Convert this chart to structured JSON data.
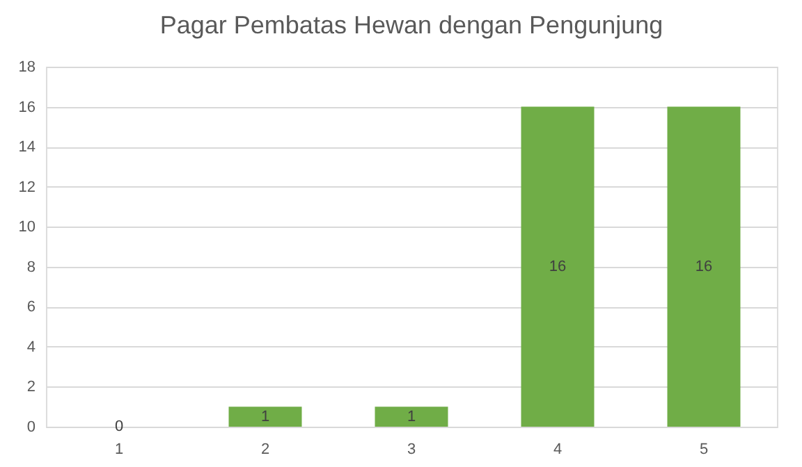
{
  "chart_data": {
    "type": "bar",
    "title": "Pagar Pembatas Hewan dengan Pengunjung",
    "categories": [
      "1",
      "2",
      "3",
      "4",
      "5"
    ],
    "values": [
      0,
      1,
      1,
      16,
      16
    ],
    "color": "#70ad47",
    "ylim": [
      0,
      18
    ],
    "yticks": [
      0,
      2,
      4,
      6,
      8,
      10,
      12,
      14,
      16,
      18
    ],
    "grid": "y",
    "data_labels": true
  }
}
